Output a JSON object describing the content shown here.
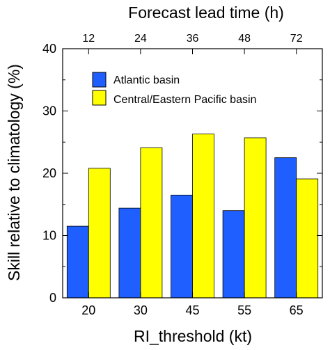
{
  "chart_data": {
    "type": "bar",
    "xlabel": "RI_threshold (kt)",
    "ylabel": "Skill relative to climatology (%)",
    "top_xlabel": "Forecast lead time (h)",
    "categories": [
      "20",
      "30",
      "45",
      "55",
      "65"
    ],
    "top_categories": [
      "12",
      "24",
      "36",
      "48",
      "72"
    ],
    "yticks": [
      "0",
      "10",
      "20",
      "30",
      "40"
    ],
    "ylim": [
      0,
      40
    ],
    "grid": false,
    "legend_position": "upper-left",
    "series": [
      {
        "name": "Atlantic basin",
        "color": "#1f5fff",
        "values": [
          11.5,
          14.4,
          16.5,
          14.0,
          22.5
        ]
      },
      {
        "name": "Central/Eastern Pacific basin",
        "color": "#ffff00",
        "values": [
          20.8,
          24.1,
          26.3,
          25.7,
          19.1
        ]
      }
    ]
  }
}
